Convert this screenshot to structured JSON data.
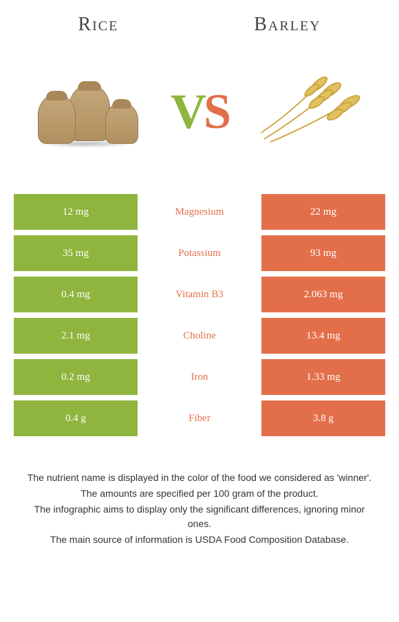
{
  "header": {
    "left_title": "Rice",
    "right_title": "Barley"
  },
  "vs": {
    "v": "V",
    "s": "S"
  },
  "colors": {
    "left": "#8fb53e",
    "right": "#e36f4a",
    "mid_bg": "#ffffff"
  },
  "rows": [
    {
      "left": "12 mg",
      "label": "Magnesium",
      "right": "22 mg",
      "winner": "right"
    },
    {
      "left": "35 mg",
      "label": "Potassium",
      "right": "93 mg",
      "winner": "right"
    },
    {
      "left": "0.4 mg",
      "label": "Vitamin B3",
      "right": "2.063 mg",
      "winner": "right"
    },
    {
      "left": "2.1 mg",
      "label": "Choline",
      "right": "13.4 mg",
      "winner": "right"
    },
    {
      "left": "0.2 mg",
      "label": "Iron",
      "right": "1.33 mg",
      "winner": "right"
    },
    {
      "left": "0.4 g",
      "label": "Fiber",
      "right": "3.8 g",
      "winner": "right"
    }
  ],
  "footer": {
    "line1": "The nutrient name is displayed in the color of the food we considered as 'winner'.",
    "line2": "The amounts are specified per 100 gram of the product.",
    "line3": "The infographic aims to display only the significant differences, ignoring minor ones.",
    "line4": "The main source of information is USDA Food Composition Database."
  }
}
